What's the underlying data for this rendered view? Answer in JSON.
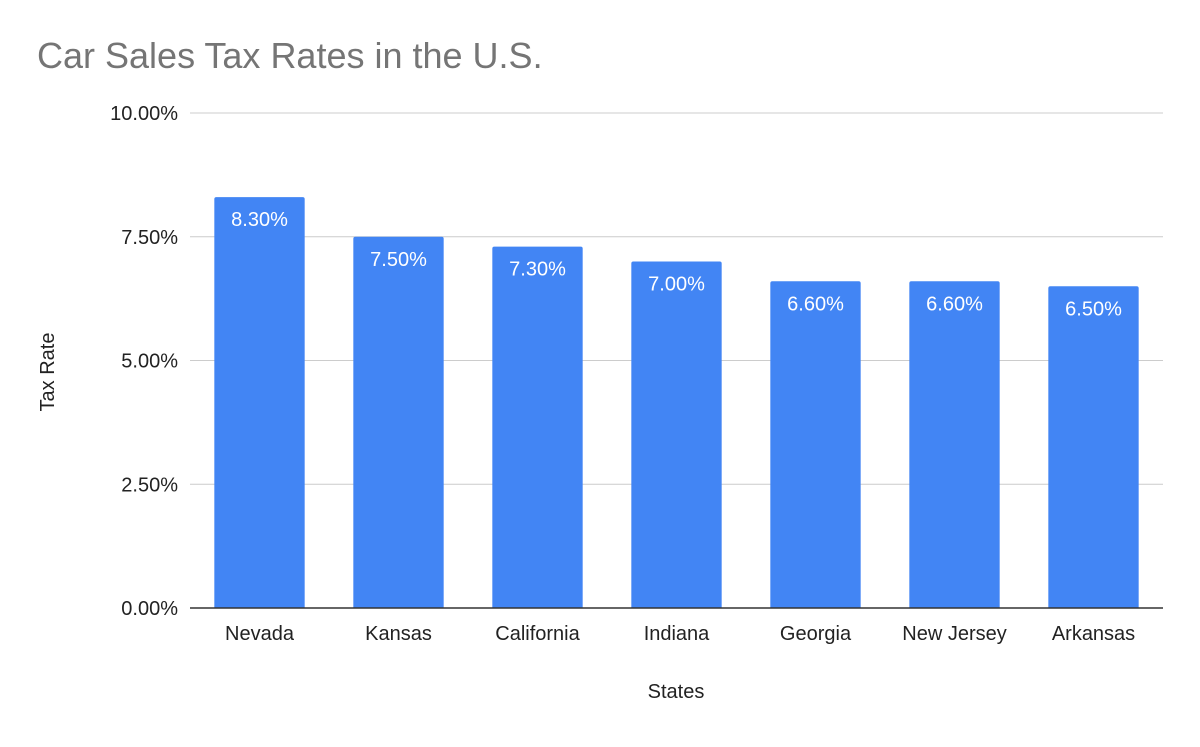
{
  "chart_data": {
    "type": "bar",
    "title": "Car Sales Tax Rates in the U.S.",
    "xlabel": "States",
    "ylabel": "Tax Rate",
    "categories": [
      "Nevada",
      "Kansas",
      "California",
      "Indiana",
      "Georgia",
      "New Jersey",
      "Arkansas"
    ],
    "values": [
      8.3,
      7.5,
      7.3,
      7.0,
      6.6,
      6.6,
      6.5
    ],
    "value_labels": [
      "8.30%",
      "7.50%",
      "7.30%",
      "7.00%",
      "6.60%",
      "6.60%",
      "6.50%"
    ],
    "y_ticks": [
      0,
      2.5,
      5,
      7.5,
      10
    ],
    "y_tick_labels": [
      "0.00%",
      "2.50%",
      "5.00%",
      "7.50%",
      "10.00%"
    ],
    "ylim": [
      0,
      10
    ],
    "grid": true,
    "legend": "none",
    "colors": {
      "bar": "#4285F4",
      "title": "#757575",
      "text": "#222222",
      "grid": "#cccccc",
      "axis": "#333333",
      "data_label": "#ffffff"
    }
  }
}
